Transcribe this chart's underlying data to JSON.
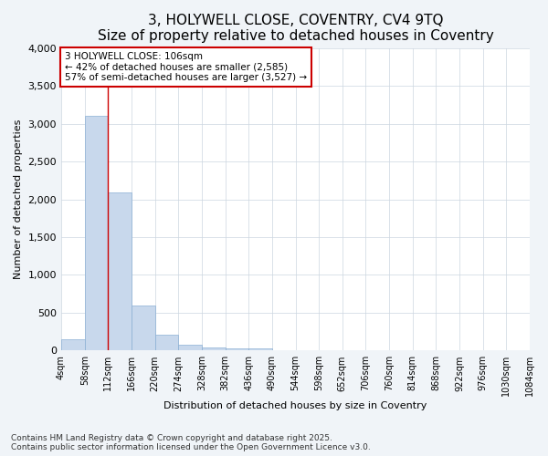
{
  "title": "3, HOLYWELL CLOSE, COVENTRY, CV4 9TQ",
  "subtitle": "Size of property relative to detached houses in Coventry",
  "xlabel": "Distribution of detached houses by size in Coventry",
  "ylabel": "Number of detached properties",
  "bin_labels": [
    "4sqm",
    "58sqm",
    "112sqm",
    "166sqm",
    "220sqm",
    "274sqm",
    "328sqm",
    "382sqm",
    "436sqm",
    "490sqm",
    "544sqm",
    "598sqm",
    "652sqm",
    "706sqm",
    "760sqm",
    "814sqm",
    "868sqm",
    "922sqm",
    "976sqm",
    "1030sqm",
    "1084sqm"
  ],
  "bar_values": [
    150,
    3100,
    2090,
    590,
    210,
    75,
    40,
    30,
    25,
    0,
    0,
    0,
    0,
    0,
    0,
    0,
    0,
    0,
    0,
    0
  ],
  "bar_color": "#c8d8ec",
  "bar_edge_color": "#8aafd4",
  "property_line_x": 2,
  "annotation_text": "3 HOLYWELL CLOSE: 106sqm\n← 42% of detached houses are smaller (2,585)\n57% of semi-detached houses are larger (3,527) →",
  "annotation_box_facecolor": "#ffffff",
  "annotation_box_edgecolor": "#cc0000",
  "vline_color": "#cc0000",
  "ylim": [
    0,
    4000
  ],
  "yticks": [
    0,
    500,
    1000,
    1500,
    2000,
    2500,
    3000,
    3500,
    4000
  ],
  "footnote": "Contains HM Land Registry data © Crown copyright and database right 2025.\nContains public sector information licensed under the Open Government Licence v3.0.",
  "grid_color": "#ccd6e0",
  "plot_bg_color": "#ffffff",
  "fig_bg_color": "#f0f4f8",
  "title_fontsize": 11,
  "subtitle_fontsize": 9,
  "footnote_fontsize": 6.5,
  "ylabel_fontsize": 8,
  "xlabel_fontsize": 8,
  "ytick_fontsize": 8,
  "xtick_fontsize": 7
}
